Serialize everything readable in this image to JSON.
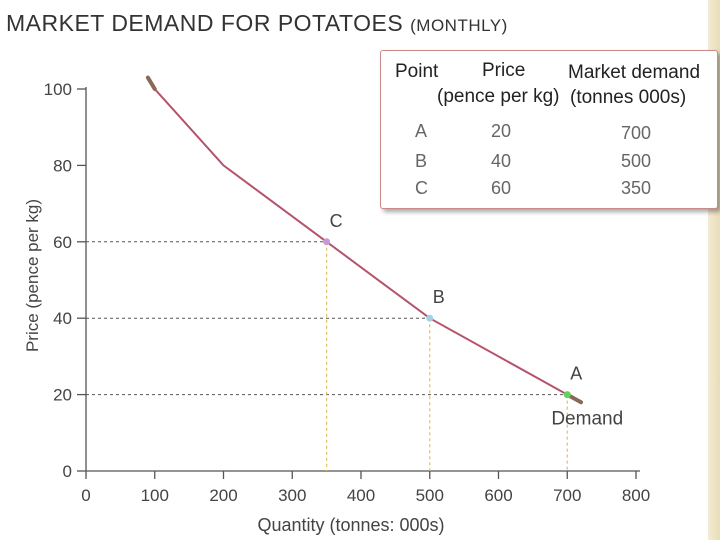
{
  "title": {
    "main": "MARKET DEMAND FOR POTATOES",
    "sub": "(MONTHLY)"
  },
  "legend_table": {
    "headers": {
      "point": "Point",
      "price": "Price",
      "price_unit": "(pence per kg)",
      "demand": "Market demand",
      "demand_unit": "(tonnes 000s)"
    },
    "rows": [
      {
        "point": "A",
        "price": "20",
        "demand": "700"
      },
      {
        "point": "B",
        "price": "40",
        "demand": "500"
      },
      {
        "point": "C",
        "price": "60",
        "demand": "350"
      }
    ]
  },
  "chart_data": {
    "type": "line",
    "title": "MARKET DEMAND FOR POTATOES (MONTHLY)",
    "xlabel": "Quantity (tonnes: 000s)",
    "ylabel": "Price (pence per kg)",
    "xlim": [
      0,
      800
    ],
    "ylim": [
      0,
      100
    ],
    "x_ticks": [
      0,
      100,
      200,
      300,
      400,
      500,
      600,
      700,
      800
    ],
    "y_ticks": [
      0,
      20,
      40,
      60,
      80,
      100
    ],
    "series": [
      {
        "name": "Demand",
        "x": [
          90,
          100,
          200,
          350,
          500,
          700,
          720
        ],
        "y": [
          103,
          100,
          80,
          60,
          40,
          20,
          18
        ]
      }
    ],
    "points": [
      {
        "label": "A",
        "x": 700,
        "y": 20,
        "color": "#5fd35f"
      },
      {
        "label": "B",
        "x": 500,
        "y": 40,
        "color": "#9fd3ea"
      },
      {
        "label": "C",
        "x": 350,
        "y": 60,
        "color": "#c79ad6"
      }
    ],
    "curve_label": "Demand",
    "colors": {
      "curve": "#b5536b",
      "curve_end": "#8a6a55",
      "axis": "#555555",
      "guide_h": "#555555",
      "guide_v": "#e0c060",
      "text": "#444444"
    }
  }
}
